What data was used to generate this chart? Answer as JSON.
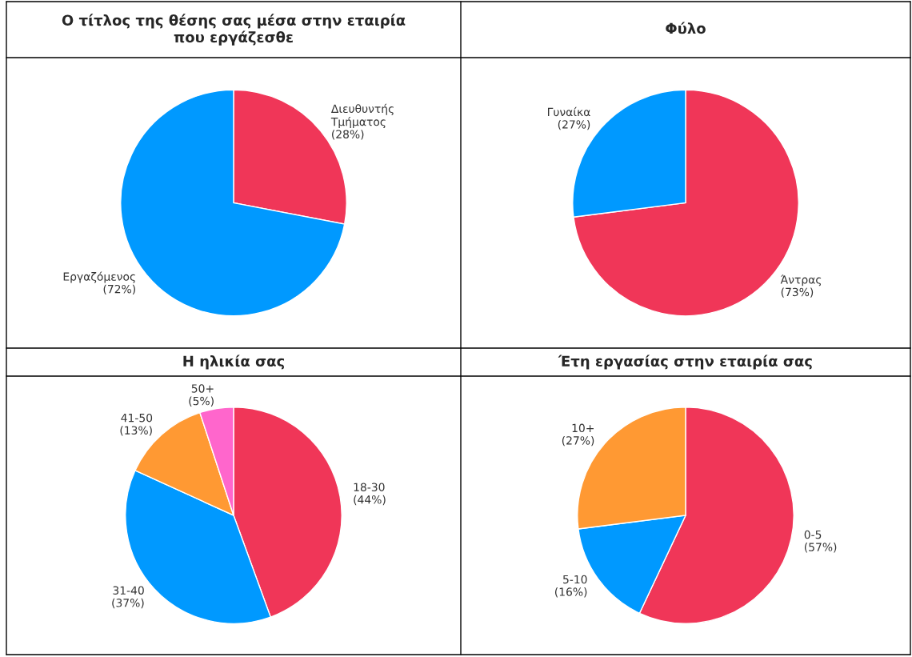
{
  "chart_data": [
    {
      "type": "pie",
      "title": "Ο τίτλος της θέσης σας μέσα στην εταιρία\nπου εργάζεσθε",
      "categories": [
        "Διευθυντής\nΤμήματος",
        "Εργαζόμενος"
      ],
      "values": [
        28,
        72
      ],
      "colors": [
        "#f03658",
        "#0099ff"
      ],
      "value_labels": [
        "(28%)",
        "(72%)"
      ]
    },
    {
      "type": "pie",
      "title": "Φύλο",
      "categories": [
        "Άντρας",
        "Γυναίκα"
      ],
      "values": [
        73,
        27
      ],
      "colors": [
        "#f03658",
        "#0099ff"
      ],
      "value_labels": [
        "(73%)",
        "(27%)"
      ]
    },
    {
      "type": "pie",
      "title": "Η ηλικία σας",
      "categories": [
        "18-30",
        "31-40",
        "41-50",
        "50+"
      ],
      "values": [
        44,
        37,
        13,
        5
      ],
      "colors": [
        "#f03658",
        "#0099ff",
        "#ff9933",
        "#ff66cc"
      ],
      "value_labels": [
        "(44%)",
        "(37%)",
        "(13%)",
        "(5%)"
      ]
    },
    {
      "type": "pie",
      "title": "Έτη εργασίας στην εταιρία σας",
      "categories": [
        "0-5",
        "5-10",
        "10+"
      ],
      "values": [
        57,
        16,
        27
      ],
      "colors": [
        "#f03658",
        "#0099ff",
        "#ff9933"
      ],
      "value_labels": [
        "(57%)",
        "(16%)",
        "(27%)"
      ]
    }
  ]
}
